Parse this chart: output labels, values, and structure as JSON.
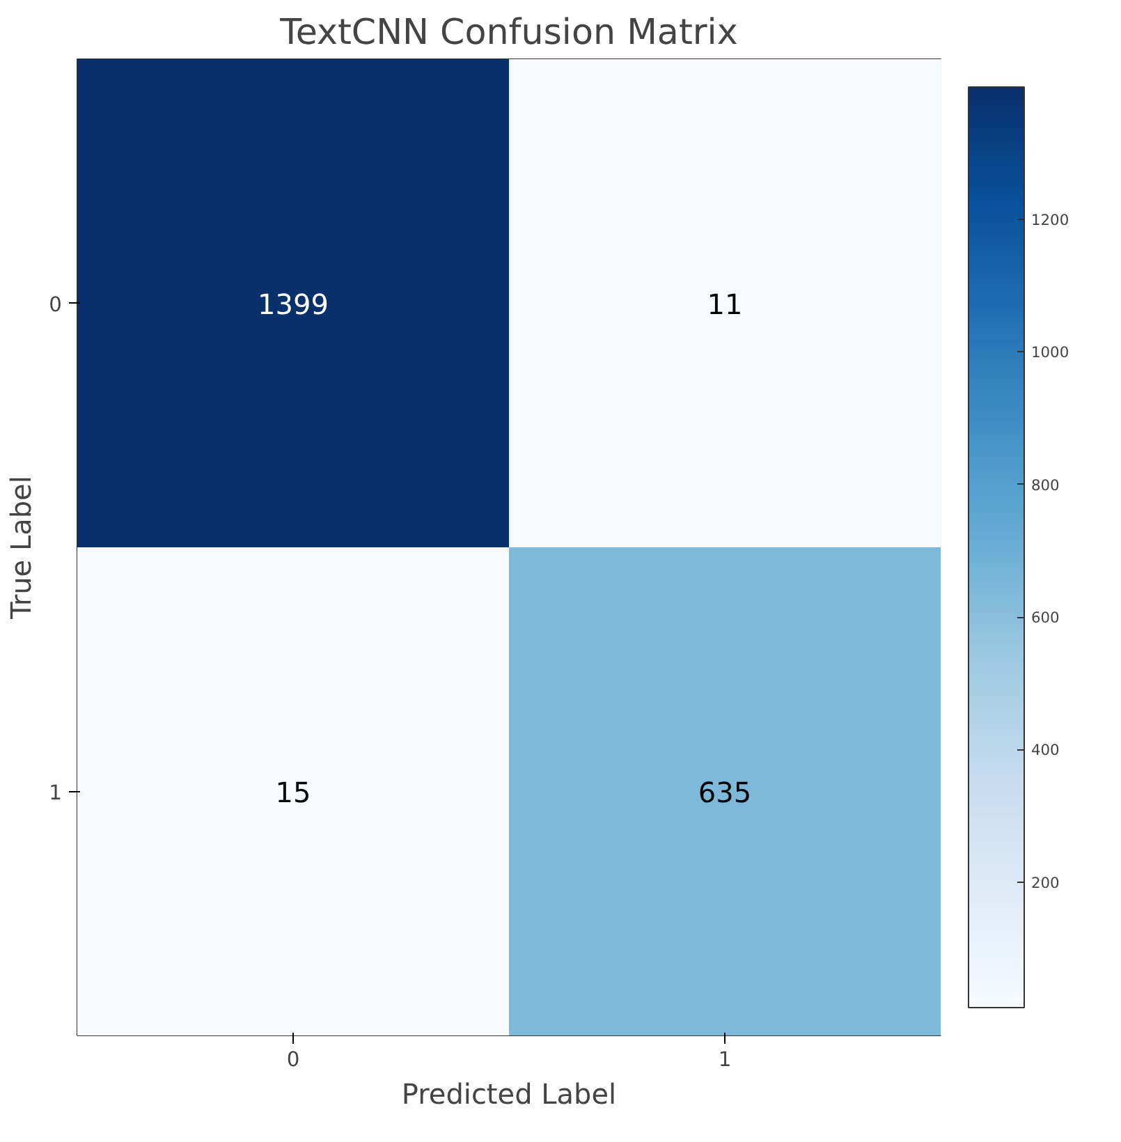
{
  "chart_data": {
    "type": "heatmap",
    "title": "TextCNN Confusion Matrix",
    "xlabel": "Predicted Label",
    "ylabel": "True Label",
    "categories": [
      "0",
      "1"
    ],
    "y_categories": [
      "0",
      "1"
    ],
    "cells": [
      [
        1399,
        11
      ],
      [
        15,
        635
      ]
    ],
    "data_labels": true,
    "clim": [
      11,
      1399
    ],
    "cticks": [
      200,
      400,
      600,
      800,
      1000,
      1200
    ]
  }
}
